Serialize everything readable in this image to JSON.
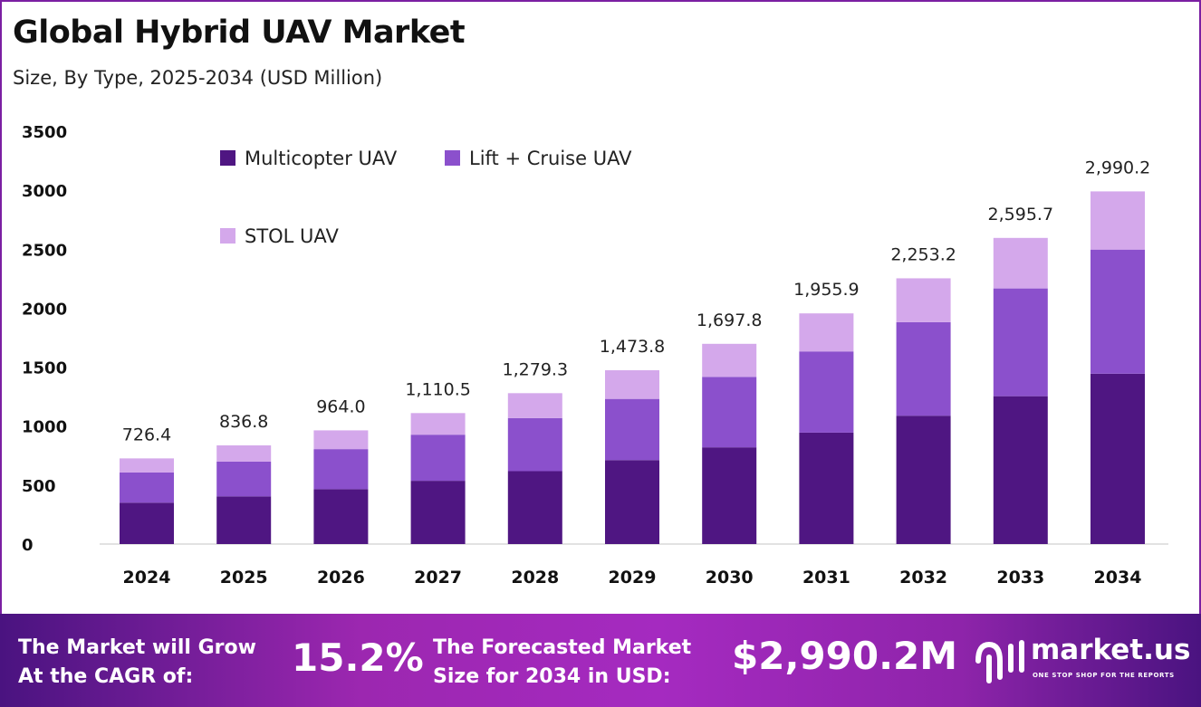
{
  "chart_data": {
    "type": "bar",
    "stacked": true,
    "title": "Global Hybrid UAV Market",
    "subtitle": "Size, By Type, 2025-2034 (USD Million)",
    "xlabel": "",
    "ylabel": "",
    "ylim": [
      0,
      3500
    ],
    "yticks": [
      0,
      500,
      1000,
      1500,
      2000,
      2500,
      3000,
      3500
    ],
    "grid": false,
    "legend_placement": "top-left",
    "categories": [
      "2024",
      "2025",
      "2026",
      "2027",
      "2028",
      "2029",
      "2030",
      "2031",
      "2032",
      "2033",
      "2034"
    ],
    "series": [
      {
        "name": "Multicopter UAV",
        "color": "#4f1682",
        "values": [
          350.9,
          404.2,
          465.6,
          536.4,
          617.9,
          711.8,
          820.0,
          944.7,
          1088.3,
          1253.7,
          1444.3
        ]
      },
      {
        "name": "Lift + Cruise UAV",
        "color": "#8b50cc",
        "values": [
          255.7,
          294.6,
          339.3,
          390.9,
          450.3,
          518.8,
          597.6,
          688.5,
          793.1,
          913.7,
          1052.5
        ]
      },
      {
        "name": "STOL UAV",
        "color": "#d4a8eb",
        "values": [
          119.8,
          138.0,
          159.1,
          183.2,
          211.1,
          243.2,
          280.2,
          322.7,
          371.8,
          428.3,
          493.4
        ]
      }
    ],
    "totals": [
      726.4,
      836.8,
      964.0,
      1110.5,
      1279.3,
      1473.8,
      1697.8,
      1955.9,
      2253.2,
      2595.7,
      2990.2
    ],
    "total_labels": [
      "726.4",
      "836.8",
      "964.0",
      "1,110.5",
      "1,279.3",
      "1,473.8",
      "1,697.8",
      "1,955.9",
      "2,253.2",
      "2,595.7",
      "2,990.2"
    ]
  },
  "footer": {
    "cagr_label_line1": "The Market will Grow",
    "cagr_label_line2": "At the CAGR of:",
    "cagr_value": "15.2%",
    "forecast_label_line1": "The Forecasted Market",
    "forecast_label_line2": "Size for 2034 in USD:",
    "forecast_value": "$2,990.2M",
    "logo_name": "market.us",
    "logo_tagline": "ONE STOP SHOP FOR THE REPORTS"
  }
}
